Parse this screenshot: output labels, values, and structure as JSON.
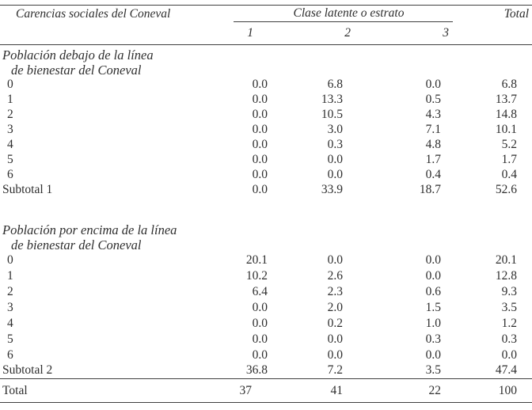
{
  "table": {
    "header": {
      "row_dimension_label": "Carencias sociales del Coneval",
      "group_label": "Clase latente o estrato",
      "total_label": "Total",
      "class_columns": [
        "1",
        "2",
        "3"
      ]
    },
    "sections": [
      {
        "title_line1": "Población debajo de la línea",
        "title_line2": "de bienestar del Coneval",
        "rows": [
          {
            "label": "0",
            "values": [
              "0.0",
              "6.8",
              "0.0",
              "6.8"
            ]
          },
          {
            "label": "1",
            "values": [
              "0.0",
              "13.3",
              "0.5",
              "13.7"
            ]
          },
          {
            "label": "2",
            "values": [
              "0.0",
              "10.5",
              "4.3",
              "14.8"
            ]
          },
          {
            "label": "3",
            "values": [
              "0.0",
              "3.0",
              "7.1",
              "10.1"
            ]
          },
          {
            "label": "4",
            "values": [
              "0.0",
              "0.3",
              "4.8",
              "5.2"
            ]
          },
          {
            "label": "5",
            "values": [
              "0.0",
              "0.0",
              "1.7",
              "1.7"
            ]
          },
          {
            "label": "6",
            "values": [
              "0.0",
              "0.0",
              "0.4",
              "0.4"
            ]
          }
        ],
        "subtotal": {
          "label": "Subtotal 1",
          "values": [
            "0.0",
            "33.9",
            "18.7",
            "52.6"
          ]
        }
      },
      {
        "title_line1": "Población por encima de la línea",
        "title_line2": "de bienestar del Coneval",
        "rows": [
          {
            "label": "0",
            "values": [
              "20.1",
              "0.0",
              "0.0",
              "20.1"
            ]
          },
          {
            "label": "1",
            "values": [
              "10.2",
              "2.6",
              "0.0",
              "12.8"
            ]
          },
          {
            "label": "2",
            "values": [
              "6.4",
              "2.3",
              "0.6",
              "9.3"
            ]
          },
          {
            "label": "3",
            "values": [
              "0.0",
              "2.0",
              "1.5",
              "3.5"
            ]
          },
          {
            "label": "4",
            "values": [
              "0.0",
              "0.2",
              "1.0",
              "1.2"
            ]
          },
          {
            "label": "5",
            "values": [
              "0.0",
              "0.0",
              "0.3",
              "0.3"
            ]
          },
          {
            "label": "6",
            "values": [
              "0.0",
              "0.0",
              "0.0",
              "0.0"
            ]
          }
        ],
        "subtotal": {
          "label": "Subtotal 2",
          "values": [
            "36.8",
            "7.2",
            "3.5",
            "47.4"
          ]
        }
      }
    ],
    "total_row": {
      "label": "Total",
      "values": [
        "37",
        "41",
        "22",
        "100"
      ]
    },
    "colors": {
      "text": "#2e2e2e",
      "rule": "#3f3f3f",
      "background": "#ffffff"
    }
  }
}
